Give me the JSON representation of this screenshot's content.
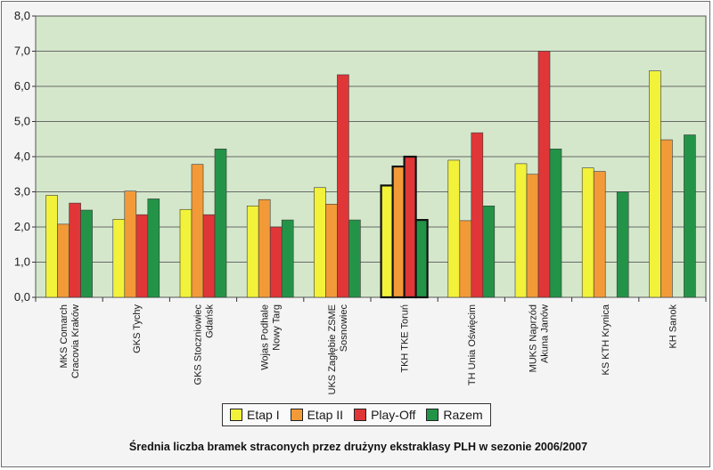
{
  "chart_data": {
    "type": "bar",
    "title": "Średnia liczba bramek straconych przez drużyny ekstraklasy PLH w sezonie 2006/2007",
    "ylim": [
      0,
      8
    ],
    "yticks": [
      "0,0",
      "1,0",
      "2,0",
      "3,0",
      "4,0",
      "5,0",
      "6,0",
      "7,0",
      "8,0"
    ],
    "grid": true,
    "legend_position": "bottom",
    "categories": [
      [
        "MKS Comarch",
        "Cracovia Kraków"
      ],
      [
        "GKS Tychy"
      ],
      [
        "GKS Stoczniowiec",
        "Gdańsk"
      ],
      [
        "Wojas Podhale",
        "Nowy Targ"
      ],
      [
        "UKS Zagłębie ZSME",
        "Sosnowiec"
      ],
      [
        "TKH TKE Toruń"
      ],
      [
        "TH Unia Oświęcim"
      ],
      [
        "MUKS Naprzód",
        "Akuna Janów"
      ],
      [
        "KS KTH Krynica"
      ],
      [
        "KH Sanok"
      ]
    ],
    "highlight_category": 5,
    "series": [
      {
        "name": "Etap I",
        "color": "#f2f23a",
        "values": [
          2.9,
          2.22,
          2.5,
          2.6,
          3.12,
          3.18,
          3.9,
          3.8,
          3.68,
          6.44
        ]
      },
      {
        "name": "Etap II",
        "color": "#f29a38",
        "values": [
          2.08,
          3.02,
          3.78,
          2.78,
          2.65,
          3.72,
          2.18,
          3.5,
          3.58,
          4.48
        ]
      },
      {
        "name": "Play-Off",
        "color": "#e03638",
        "values": [
          2.68,
          2.35,
          2.35,
          2.0,
          6.33,
          4.0,
          4.68,
          7.0,
          null,
          null
        ]
      },
      {
        "name": "Razem",
        "color": "#239447",
        "values": [
          2.48,
          2.8,
          4.22,
          2.2,
          2.2,
          2.2,
          2.6,
          4.22,
          3.0,
          4.62
        ]
      }
    ]
  }
}
